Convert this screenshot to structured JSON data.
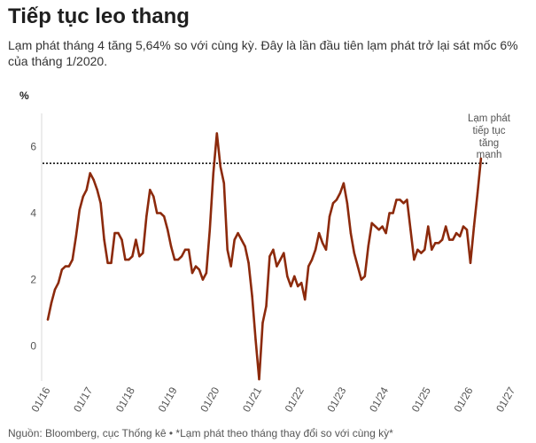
{
  "chart_data": {
    "type": "line",
    "title": "Tiếp tục leo thang",
    "subtitle": "Lạm phát tháng 4 tăng 5,64% so với cùng kỳ. Đây là lần đầu tiên lạm phát trở lại sát mốc 6% của tháng 1/2020.",
    "ylabel": "%",
    "xlabel": "",
    "x_ticks": [
      "01/16",
      "01/17",
      "01/18",
      "01/19",
      "01/20",
      "01/21",
      "01/22",
      "01/23",
      "01/24",
      "01/25",
      "01/26",
      "01/27"
    ],
    "y_ticks": [
      0,
      2,
      4,
      6
    ],
    "xlim": [
      "01/16",
      "01/27"
    ],
    "ylim": [
      -1.05,
      7.0
    ],
    "grid": false,
    "legend": "none",
    "reference_line": {
      "y": 5.5,
      "color": "#111111"
    },
    "annotation": "Lạm phát tiếp tục tăng mạnh",
    "source": "Nguồn: Bloomberg, cục Thống kê • *Lạm phát theo tháng thay đổi so với cùng kỳ*",
    "x": [
      "01/16",
      "02/16",
      "03/16",
      "04/16",
      "05/16",
      "06/16",
      "07/16",
      "08/16",
      "09/16",
      "10/16",
      "11/16",
      "12/16",
      "01/17",
      "02/17",
      "03/17",
      "04/17",
      "05/17",
      "06/17",
      "07/17",
      "08/17",
      "09/17",
      "10/17",
      "11/17",
      "12/17",
      "01/18",
      "02/18",
      "03/18",
      "04/18",
      "05/18",
      "06/18",
      "07/18",
      "08/18",
      "09/18",
      "10/18",
      "11/18",
      "12/18",
      "01/19",
      "02/19",
      "03/19",
      "04/19",
      "05/19",
      "06/19",
      "07/19",
      "08/19",
      "09/19",
      "10/19",
      "11/19",
      "12/19",
      "01/20",
      "02/20",
      "03/20",
      "04/20",
      "05/20",
      "06/20",
      "07/20",
      "08/20",
      "09/20",
      "10/20",
      "11/20",
      "12/20",
      "01/21",
      "02/21",
      "03/21",
      "04/21",
      "05/21",
      "06/21",
      "07/21",
      "08/21",
      "09/21",
      "10/21",
      "11/21",
      "12/21",
      "01/22",
      "02/22",
      "03/22",
      "04/22",
      "05/22",
      "06/22",
      "07/22",
      "08/22",
      "09/22",
      "10/22",
      "11/22",
      "12/22",
      "01/23",
      "02/23",
      "03/23",
      "04/23",
      "05/23",
      "06/23",
      "07/23",
      "08/23",
      "09/23",
      "10/23",
      "11/23",
      "12/23",
      "01/24",
      "02/24",
      "03/24",
      "04/24",
      "05/24",
      "06/24",
      "07/24",
      "08/24",
      "09/24",
      "10/24",
      "11/24",
      "12/24",
      "01/25",
      "02/25",
      "03/25",
      "04/25",
      "05/25",
      "06/25",
      "07/25",
      "08/25",
      "09/25",
      "10/25",
      "11/25",
      "12/25",
      "01/26",
      "02/26",
      "03/26",
      "04/26"
    ],
    "series": [
      {
        "color": "#8c2a0c",
        "values": [
          0.8,
          1.3,
          1.7,
          1.9,
          2.3,
          2.4,
          2.4,
          2.6,
          3.3,
          4.1,
          4.5,
          4.7,
          5.2,
          5.0,
          4.7,
          4.3,
          3.2,
          2.5,
          2.5,
          3.4,
          3.4,
          3.2,
          2.6,
          2.6,
          2.7,
          3.2,
          2.7,
          2.8,
          3.9,
          4.7,
          4.5,
          4.0,
          4.0,
          3.9,
          3.5,
          3.0,
          2.6,
          2.6,
          2.7,
          2.9,
          2.9,
          2.2,
          2.4,
          2.3,
          2.0,
          2.2,
          3.5,
          5.2,
          6.4,
          5.4,
          4.9,
          2.9,
          2.4,
          3.2,
          3.4,
          3.2,
          3.0,
          2.5,
          1.5,
          0.2,
          -1.0,
          0.7,
          1.2,
          2.7,
          2.9,
          2.4,
          2.6,
          2.8,
          2.1,
          1.8,
          2.1,
          1.8,
          1.9,
          1.4,
          2.4,
          2.6,
          2.9,
          3.4,
          3.1,
          2.9,
          3.9,
          4.3,
          4.4,
          4.6,
          4.9,
          4.3,
          3.4,
          2.8,
          2.4,
          2.0,
          2.1,
          3.0,
          3.7,
          3.6,
          3.5,
          3.6,
          3.4,
          4.0,
          4.0,
          4.4,
          4.4,
          4.3,
          4.4,
          3.5,
          2.6,
          2.9,
          2.8,
          2.9,
          3.6,
          2.9,
          3.1,
          3.1,
          3.2,
          3.6,
          3.2,
          3.2,
          3.4,
          3.3,
          3.6,
          3.5,
          2.5,
          3.6,
          4.6,
          5.64
        ]
      }
    ]
  }
}
